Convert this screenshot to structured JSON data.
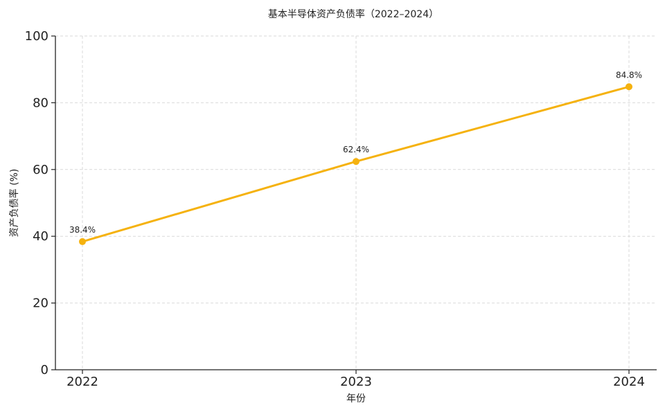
{
  "chart_data": {
    "type": "line",
    "title": "基本半导体资产负债率（2022–2024）",
    "xlabel": "年份",
    "ylabel": "资产负债率 (%)",
    "categories": [
      "2022",
      "2023",
      "2024"
    ],
    "series": [
      {
        "values": [
          38.4,
          62.4,
          84.8
        ],
        "labels": [
          "38.4%",
          "62.4%",
          "84.8%"
        ],
        "color": "#F5B20F"
      }
    ],
    "ylim": [
      0,
      100
    ],
    "yticks": [
      "0",
      "20",
      "40",
      "60",
      "80",
      "100"
    ],
    "grid": true,
    "legend": "none"
  }
}
